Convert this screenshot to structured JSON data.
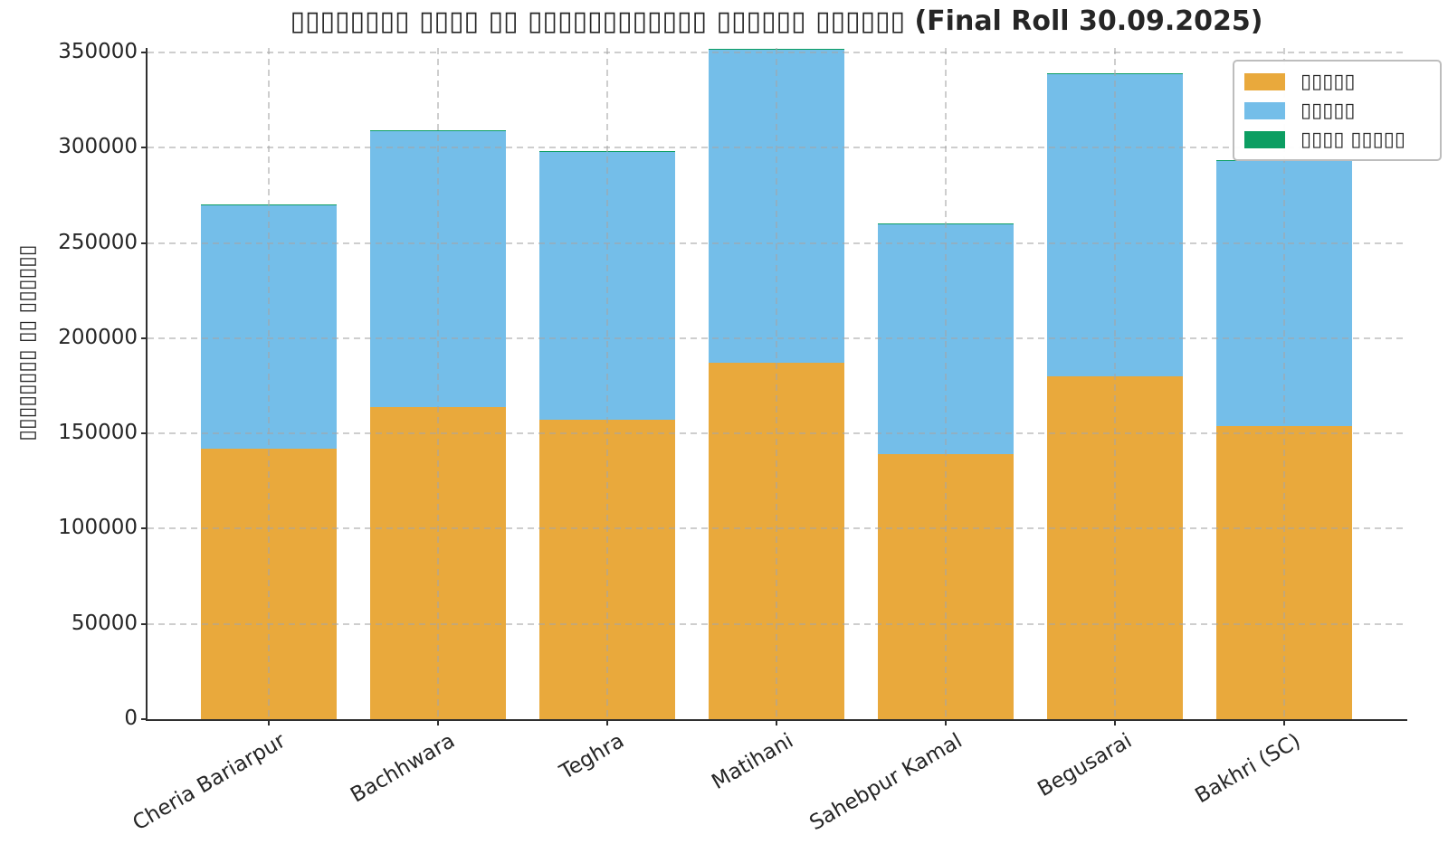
{
  "note": "All Devanagari text in the source image is rendered as hollow tofu boxes (missing glyphs); box counts are preserved exactly.",
  "title": "▯▯▯▯▯▯▯▯ ▯▯▯▯ ▯▯ ▯▯▯▯▯▯▯▯▯▯▯▯ ▯▯▯▯▯▯ ▯▯▯▯▯▯ (Final Roll 30.09.2025)",
  "chart_data": {
    "type": "bar",
    "stacked": true,
    "title": "▯▯▯▯▯▯▯▯ ▯▯▯▯ ▯▯ ▯▯▯▯▯▯▯▯▯▯▯▯ ▯▯▯▯▯▯ ▯▯▯▯▯▯ (Final Roll 30.09.2025)",
    "xlabel": "",
    "ylabel": "▯▯▯▯▯▯▯▯ ▯▯ ▯▯▯▯▯▯",
    "categories": [
      "Cheria Bariarpur",
      "Bachhwara",
      "Teghra",
      "Matihani",
      "Sahebpur Kamal",
      "Begusarai",
      "Bakhri (SC)"
    ],
    "series": [
      {
        "name": "▯▯▯▯▯",
        "color": "#E9A93C",
        "values": [
          142000,
          164000,
          157000,
          187000,
          139000,
          180000,
          154000
        ]
      },
      {
        "name": "▯▯▯▯▯",
        "color": "#74BEE9",
        "values": [
          128000,
          145000,
          141000,
          165000,
          121000,
          159000,
          139000
        ]
      },
      {
        "name": "▯▯▯▯ ▯▯▯▯▯",
        "color": "#0C9E62",
        "values": [
          100,
          100,
          100,
          100,
          100,
          100,
          500
        ]
      }
    ],
    "totals": [
      270100,
      309100,
      298100,
      352100,
      260100,
      339100,
      293500
    ],
    "ylim": [
      0,
      352400
    ],
    "yticks": [
      0,
      50000,
      100000,
      150000,
      200000,
      250000,
      300000,
      350000
    ],
    "grid": "dashed gray, both axes, drawn above bars",
    "legend_position": "upper right"
  }
}
